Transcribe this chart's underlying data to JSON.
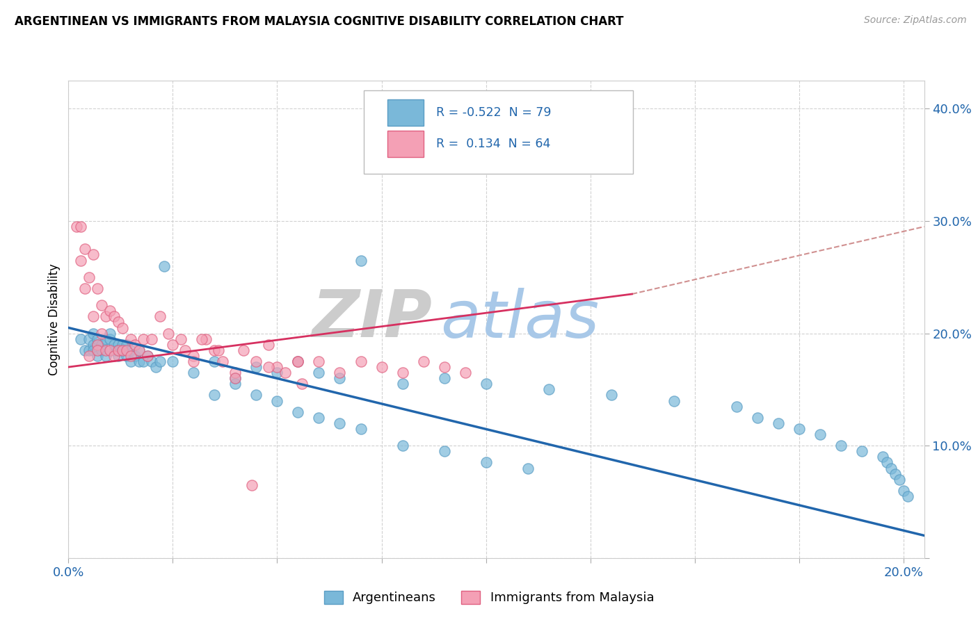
{
  "title": "ARGENTINEAN VS IMMIGRANTS FROM MALAYSIA COGNITIVE DISABILITY CORRELATION CHART",
  "source": "Source: ZipAtlas.com",
  "ylabel": "Cognitive Disability",
  "xlim": [
    0.0,
    0.205
  ],
  "ylim": [
    0.0,
    0.425
  ],
  "xticks": [
    0.0,
    0.025,
    0.05,
    0.075,
    0.1,
    0.125,
    0.15,
    0.175,
    0.2
  ],
  "xtick_labels": [
    "0.0%",
    "",
    "",
    "",
    "",
    "",
    "",
    "",
    "20.0%"
  ],
  "yticks": [
    0.0,
    0.1,
    0.2,
    0.3,
    0.4
  ],
  "ytick_labels": [
    "",
    "10.0%",
    "20.0%",
    "30.0%",
    "40.0%"
  ],
  "blue_R": -0.522,
  "blue_N": 79,
  "pink_R": 0.134,
  "pink_N": 64,
  "blue_marker_color": "#7ab8d9",
  "blue_edge_color": "#5a9dc4",
  "blue_line_color": "#2166ac",
  "pink_marker_color": "#f4a0b5",
  "pink_edge_color": "#e06080",
  "pink_line_color": "#d63060",
  "dash_color": "#d09090",
  "grid_color": "#cccccc",
  "legend_box_color": "#dddddd",
  "text_color": "#2166ac",
  "watermark_ZIP_color": "#cccccc",
  "watermark_atlas_color": "#a8c8e8",
  "blue_scatter_x": [
    0.003,
    0.004,
    0.005,
    0.005,
    0.006,
    0.006,
    0.006,
    0.007,
    0.007,
    0.007,
    0.008,
    0.008,
    0.009,
    0.009,
    0.01,
    0.01,
    0.01,
    0.011,
    0.011,
    0.012,
    0.012,
    0.012,
    0.013,
    0.013,
    0.014,
    0.014,
    0.015,
    0.015,
    0.016,
    0.017,
    0.017,
    0.018,
    0.019,
    0.02,
    0.021,
    0.022,
    0.023,
    0.025,
    0.03,
    0.035,
    0.04,
    0.045,
    0.05,
    0.055,
    0.06,
    0.065,
    0.07,
    0.08,
    0.09,
    0.1,
    0.115,
    0.13,
    0.145,
    0.16,
    0.165,
    0.17,
    0.175,
    0.18,
    0.185,
    0.19,
    0.195,
    0.196,
    0.197,
    0.198,
    0.199,
    0.2,
    0.201,
    0.035,
    0.04,
    0.045,
    0.05,
    0.055,
    0.06,
    0.065,
    0.07,
    0.08,
    0.09,
    0.1,
    0.11
  ],
  "blue_scatter_y": [
    0.195,
    0.185,
    0.195,
    0.185,
    0.19,
    0.2,
    0.185,
    0.19,
    0.195,
    0.18,
    0.19,
    0.185,
    0.195,
    0.18,
    0.185,
    0.195,
    0.2,
    0.185,
    0.19,
    0.18,
    0.19,
    0.185,
    0.185,
    0.19,
    0.18,
    0.19,
    0.185,
    0.175,
    0.18,
    0.175,
    0.185,
    0.175,
    0.18,
    0.175,
    0.17,
    0.175,
    0.26,
    0.175,
    0.165,
    0.175,
    0.16,
    0.17,
    0.165,
    0.175,
    0.165,
    0.16,
    0.265,
    0.155,
    0.16,
    0.155,
    0.15,
    0.145,
    0.14,
    0.135,
    0.125,
    0.12,
    0.115,
    0.11,
    0.1,
    0.095,
    0.09,
    0.085,
    0.08,
    0.075,
    0.07,
    0.06,
    0.055,
    0.145,
    0.155,
    0.145,
    0.14,
    0.13,
    0.125,
    0.12,
    0.115,
    0.1,
    0.095,
    0.085,
    0.08
  ],
  "pink_scatter_x": [
    0.002,
    0.003,
    0.003,
    0.004,
    0.004,
    0.005,
    0.005,
    0.006,
    0.006,
    0.007,
    0.007,
    0.007,
    0.008,
    0.008,
    0.009,
    0.009,
    0.01,
    0.01,
    0.011,
    0.011,
    0.012,
    0.012,
    0.013,
    0.013,
    0.014,
    0.015,
    0.015,
    0.016,
    0.017,
    0.018,
    0.019,
    0.02,
    0.022,
    0.024,
    0.027,
    0.03,
    0.033,
    0.037,
    0.042,
    0.048,
    0.055,
    0.03,
    0.035,
    0.04,
    0.045,
    0.05,
    0.055,
    0.06,
    0.065,
    0.07,
    0.075,
    0.08,
    0.085,
    0.09,
    0.095,
    0.025,
    0.028,
    0.032,
    0.036,
    0.04,
    0.044,
    0.048,
    0.052,
    0.056
  ],
  "pink_scatter_y": [
    0.295,
    0.295,
    0.265,
    0.24,
    0.275,
    0.25,
    0.18,
    0.215,
    0.27,
    0.19,
    0.24,
    0.185,
    0.225,
    0.2,
    0.215,
    0.185,
    0.22,
    0.185,
    0.215,
    0.18,
    0.21,
    0.185,
    0.205,
    0.185,
    0.185,
    0.195,
    0.18,
    0.19,
    0.185,
    0.195,
    0.18,
    0.195,
    0.215,
    0.2,
    0.195,
    0.18,
    0.195,
    0.175,
    0.185,
    0.19,
    0.175,
    0.175,
    0.185,
    0.165,
    0.175,
    0.17,
    0.175,
    0.175,
    0.165,
    0.175,
    0.17,
    0.165,
    0.175,
    0.17,
    0.165,
    0.19,
    0.185,
    0.195,
    0.185,
    0.16,
    0.065,
    0.17,
    0.165,
    0.155
  ]
}
